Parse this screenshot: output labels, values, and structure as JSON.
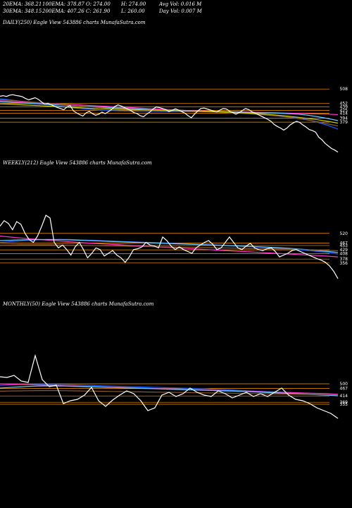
{
  "header": {
    "row1": [
      "20EMA: 368.21",
      "100EMA: 378.87",
      "O: 274.00",
      "H: 274.00",
      "Avg Vol: 0.016  M"
    ],
    "row2": [
      "30EMA: 348.15",
      "200EMA: 407.26",
      "C: 261.90",
      "L: 260.00",
      "Day Vol: 0.007 M"
    ]
  },
  "panels": {
    "daily": {
      "title": "DAILY(250) Eagle  View  543886  charts MunafaSutra.com"
    },
    "weekly": {
      "title": "WEEKLY(212) Eagle  View  543886  charts MunafaSutra.com"
    },
    "monthly": {
      "title": "MONTHLY(50) Eagle  View  543886  charts MunafaSutra.com"
    }
  },
  "colors": {
    "background": "#000000",
    "price": "#ffffff",
    "level_line": "#ff9900",
    "ema_blue": "#1e5bff",
    "ema_pink": "#ff33cc",
    "ema_cyan": "#66ccff",
    "ema_brown": "#8b5a2b",
    "ema_yellow": "#cccc00"
  },
  "chart_data": [
    {
      "type": "line",
      "title": "DAILY(250) Eagle  View  543886  charts MunafaSutra.com",
      "levels": [
        "508",
        "452",
        "439",
        "425",
        "414",
        "394",
        "379"
      ],
      "level_values": [
        508,
        452,
        439,
        425,
        414,
        394,
        379
      ],
      "ylim": [
        250,
        525
      ],
      "price": [
        480,
        482,
        479,
        484,
        486,
        483,
        481,
        478,
        471,
        466,
        470,
        474,
        468,
        458,
        449,
        452,
        447,
        441,
        436,
        432,
        427,
        438,
        444,
        423,
        415,
        408,
        403,
        415,
        421,
        412,
        406,
        410,
        418,
        412,
        420,
        428,
        440,
        446,
        442,
        436,
        430,
        424,
        416,
        412,
        404,
        400,
        410,
        418,
        430,
        438,
        436,
        432,
        428,
        420,
        425,
        431,
        426,
        420,
        414,
        404,
        396,
        410,
        422,
        432,
        434,
        430,
        426,
        422,
        418,
        426,
        432,
        430,
        422,
        416,
        410,
        416,
        424,
        432,
        428,
        420,
        414,
        408,
        402,
        396,
        390,
        382,
        370,
        362,
        356,
        348,
        356,
        368,
        376,
        382,
        378,
        368,
        360,
        350,
        346,
        340,
        320,
        310,
        296,
        286,
        276,
        270,
        262
      ],
      "series": [
        {
          "name": "",
          "color": "ema_blue",
          "values": [
            470,
            466,
            461,
            456,
            451,
            446,
            441,
            436,
            432,
            429,
            426,
            424,
            423,
            422,
            421,
            420,
            420,
            420,
            421,
            421,
            421,
            420,
            419,
            418,
            416,
            414,
            412,
            409,
            405,
            401,
            396,
            388,
            378,
            366,
            352
          ]
        },
        {
          "name": "",
          "color": "ema_pink",
          "values": [
            462,
            460,
            458,
            456,
            454,
            452,
            450,
            448,
            446,
            444,
            442,
            440,
            438,
            436,
            434,
            432,
            430,
            428,
            426,
            424,
            423,
            422,
            421,
            420,
            419,
            418,
            417,
            416,
            415,
            414,
            413,
            412,
            411,
            410,
            408
          ]
        },
        {
          "name": "",
          "color": "ema_cyan",
          "values": [
            458,
            456,
            454,
            452,
            450,
            448,
            446,
            444,
            442,
            440,
            438,
            436,
            434,
            432,
            430,
            428,
            426,
            425,
            424,
            423,
            422,
            421,
            420,
            419,
            418,
            417,
            416,
            415,
            414,
            412,
            410,
            406,
            400,
            393,
            385
          ]
        },
        {
          "name": "",
          "color": "ema_brown",
          "values": [
            466,
            464,
            461,
            458,
            455,
            452,
            448,
            445,
            442,
            439,
            436,
            433,
            431,
            429,
            427,
            425,
            424,
            423,
            422,
            421,
            420,
            419,
            418,
            416,
            414,
            412,
            409,
            406,
            402,
            398,
            393,
            387,
            380,
            372,
            364
          ]
        },
        {
          "name": "",
          "color": "ema_yellow",
          "values": [
            450,
            449,
            447,
            445,
            443,
            441,
            439,
            437,
            435,
            433,
            431,
            430,
            429,
            428,
            427,
            426,
            425,
            424,
            423,
            422,
            421,
            420,
            419,
            418,
            416,
            414,
            412,
            409,
            406,
            402,
            398,
            393,
            388,
            382,
            375
          ]
        }
      ]
    },
    {
      "type": "line",
      "title": "WEEKLY(212) Eagle  View  543886  charts MunafaSutra.com",
      "levels": [
        "520",
        "467",
        "453",
        "429",
        "408",
        "378",
        "356"
      ],
      "level_values": [
        520,
        467,
        453,
        429,
        408,
        378,
        356
      ],
      "ylim": [
        250,
        640
      ],
      "price": [
        560,
        590,
        575,
        540,
        585,
        570,
        520,
        485,
        470,
        505,
        560,
        620,
        605,
        470,
        440,
        455,
        430,
        400,
        445,
        470,
        430,
        385,
        410,
        440,
        430,
        395,
        410,
        425,
        400,
        385,
        360,
        390,
        430,
        435,
        445,
        470,
        455,
        450,
        440,
        500,
        480,
        450,
        430,
        445,
        430,
        420,
        410,
        440,
        455,
        470,
        480,
        460,
        430,
        440,
        470,
        500,
        470,
        440,
        430,
        450,
        465,
        440,
        430,
        425,
        435,
        440,
        420,
        390,
        400,
        410,
        425,
        430,
        420,
        410,
        400,
        390,
        380,
        372,
        360,
        340,
        310,
        270
      ],
      "series": [
        {
          "name": "",
          "color": "ema_blue",
          "values": [
            470,
            474,
            478,
            482,
            485,
            486,
            487,
            486,
            484,
            482,
            480,
            478,
            476,
            474,
            472,
            470,
            468,
            466,
            464,
            462,
            460,
            458,
            456,
            453,
            450,
            447,
            444,
            441,
            438,
            434,
            430,
            425,
            420,
            414,
            406
          ]
        },
        {
          "name": "",
          "color": "ema_pink",
          "values": [
            505,
            500,
            495,
            490,
            486,
            482,
            478,
            474,
            470,
            466,
            463,
            460,
            457,
            454,
            451,
            448,
            445,
            442,
            439,
            436,
            433,
            430,
            427,
            424,
            421,
            418,
            415,
            412,
            409,
            406,
            403,
            400,
            397,
            394,
            390
          ]
        },
        {
          "name": "",
          "color": "ema_cyan",
          "values": [
            480,
            482,
            484,
            485,
            486,
            486,
            485,
            484,
            482,
            480,
            478,
            476,
            474,
            472,
            470,
            468,
            466,
            464,
            462,
            460,
            458,
            456,
            454,
            452,
            450,
            448,
            446,
            444,
            441,
            438,
            434,
            430,
            425,
            420,
            414
          ]
        },
        {
          "name": "",
          "color": "ema_brown",
          "values": [
            455,
            456,
            457,
            457,
            457,
            457,
            456,
            455,
            454,
            453,
            452,
            451,
            450,
            449,
            448,
            447,
            446,
            445,
            444,
            443,
            442,
            441,
            440,
            439,
            438,
            437,
            436,
            435,
            434,
            433,
            432,
            430,
            428,
            426,
            424
          ]
        }
      ]
    },
    {
      "type": "line",
      "title": "MONTHLY(50) Eagle  View  543886  charts MunafaSutra.com",
      "levels": [
        "500",
        "467",
        "414",
        "369",
        "355"
      ],
      "level_values": [
        500,
        467,
        414,
        369,
        355
      ],
      "ylim": [
        220,
        720
      ],
      "price": [
        550,
        545,
        560,
        520,
        510,
        700,
        530,
        480,
        490,
        360,
        380,
        390,
        420,
        475,
        380,
        340,
        385,
        420,
        450,
        430,
        380,
        310,
        330,
        420,
        440,
        410,
        430,
        470,
        440,
        420,
        410,
        450,
        430,
        400,
        420,
        440,
        410,
        430,
        410,
        440,
        470,
        420,
        390,
        380,
        360,
        330,
        310,
        290,
        255
      ],
      "series": [
        {
          "name": "",
          "color": "ema_blue",
          "values": [
            490,
            492,
            494,
            495,
            496,
            496,
            495,
            494,
            492,
            490,
            488,
            486,
            484,
            482,
            480,
            478,
            476,
            474,
            472,
            470,
            468,
            466,
            464,
            461,
            458,
            455,
            452,
            449,
            446,
            443,
            440,
            436,
            432,
            428,
            424,
            420,
            416
          ]
        },
        {
          "name": "",
          "color": "ema_pink",
          "values": [
            500,
            498,
            496,
            494,
            492,
            490,
            488,
            486,
            484,
            482,
            480,
            478,
            476,
            474,
            472,
            470,
            468,
            466,
            464,
            462,
            460,
            458,
            456,
            454,
            452,
            450,
            448,
            446,
            444,
            442,
            440,
            438,
            436,
            434,
            432,
            430,
            426
          ]
        },
        {
          "name": "",
          "color": "ema_cyan",
          "values": [
            470,
            474,
            478,
            482,
            484,
            485,
            485,
            484,
            482,
            480,
            478,
            476,
            474,
            472,
            470,
            468,
            466,
            464,
            462,
            460,
            458,
            456,
            454,
            452,
            450,
            448,
            446,
            443,
            440,
            437,
            434,
            431,
            428,
            425,
            422,
            419,
            415
          ]
        },
        {
          "name": "",
          "color": "ema_brown",
          "values": [
            448,
            449,
            450,
            451,
            452,
            452,
            452,
            451,
            450,
            449,
            448,
            447,
            446,
            445,
            444,
            443,
            442,
            441,
            440,
            439,
            438,
            437,
            436,
            435,
            434,
            433,
            432,
            431,
            430,
            429,
            428,
            427,
            426,
            425,
            424,
            423,
            422
          ]
        }
      ]
    }
  ]
}
